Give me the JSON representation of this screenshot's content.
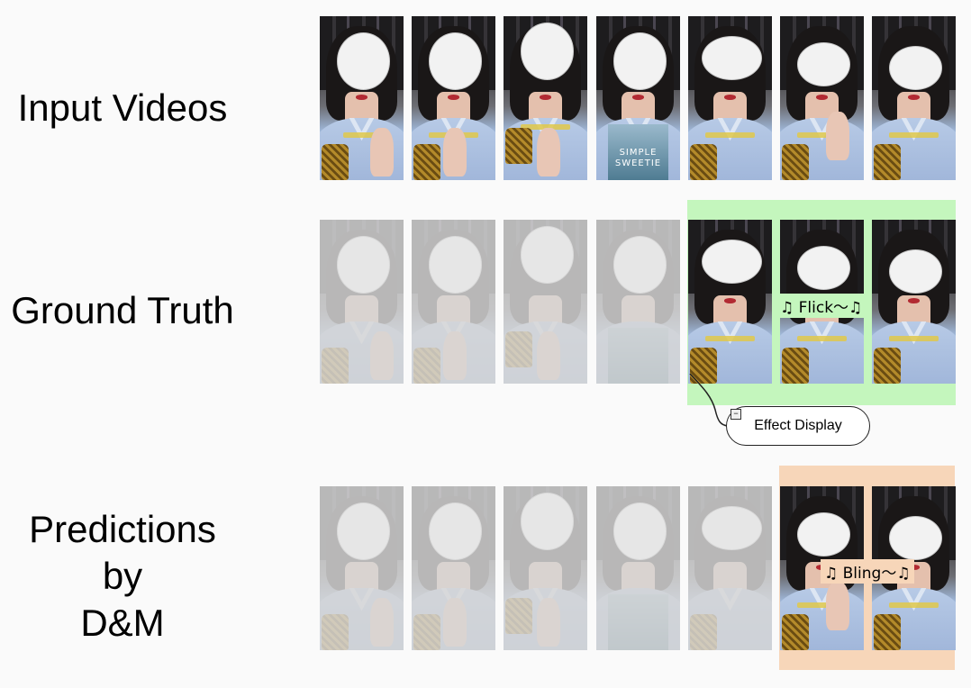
{
  "rows": {
    "input": {
      "label": "Input Videos"
    },
    "ground_truth": {
      "label": "Ground Truth"
    },
    "predictions": {
      "label_lines": [
        "Predictions",
        "by",
        "D&M"
      ]
    }
  },
  "ground_truth_tag": "♫ Flick～♫",
  "prediction_tag": "♫ Bling～♫",
  "callout_label": "Effect Display",
  "pack_text": [
    "SIMPLE",
    "SWEETIE"
  ],
  "colors": {
    "ground_truth_highlight": "#c4f6bd",
    "prediction_highlight": "#f7d6b9"
  },
  "frame_count": 7,
  "ground_truth_effect_frames": [
    5,
    6,
    7
  ],
  "prediction_effect_frames": [
    6,
    7
  ]
}
